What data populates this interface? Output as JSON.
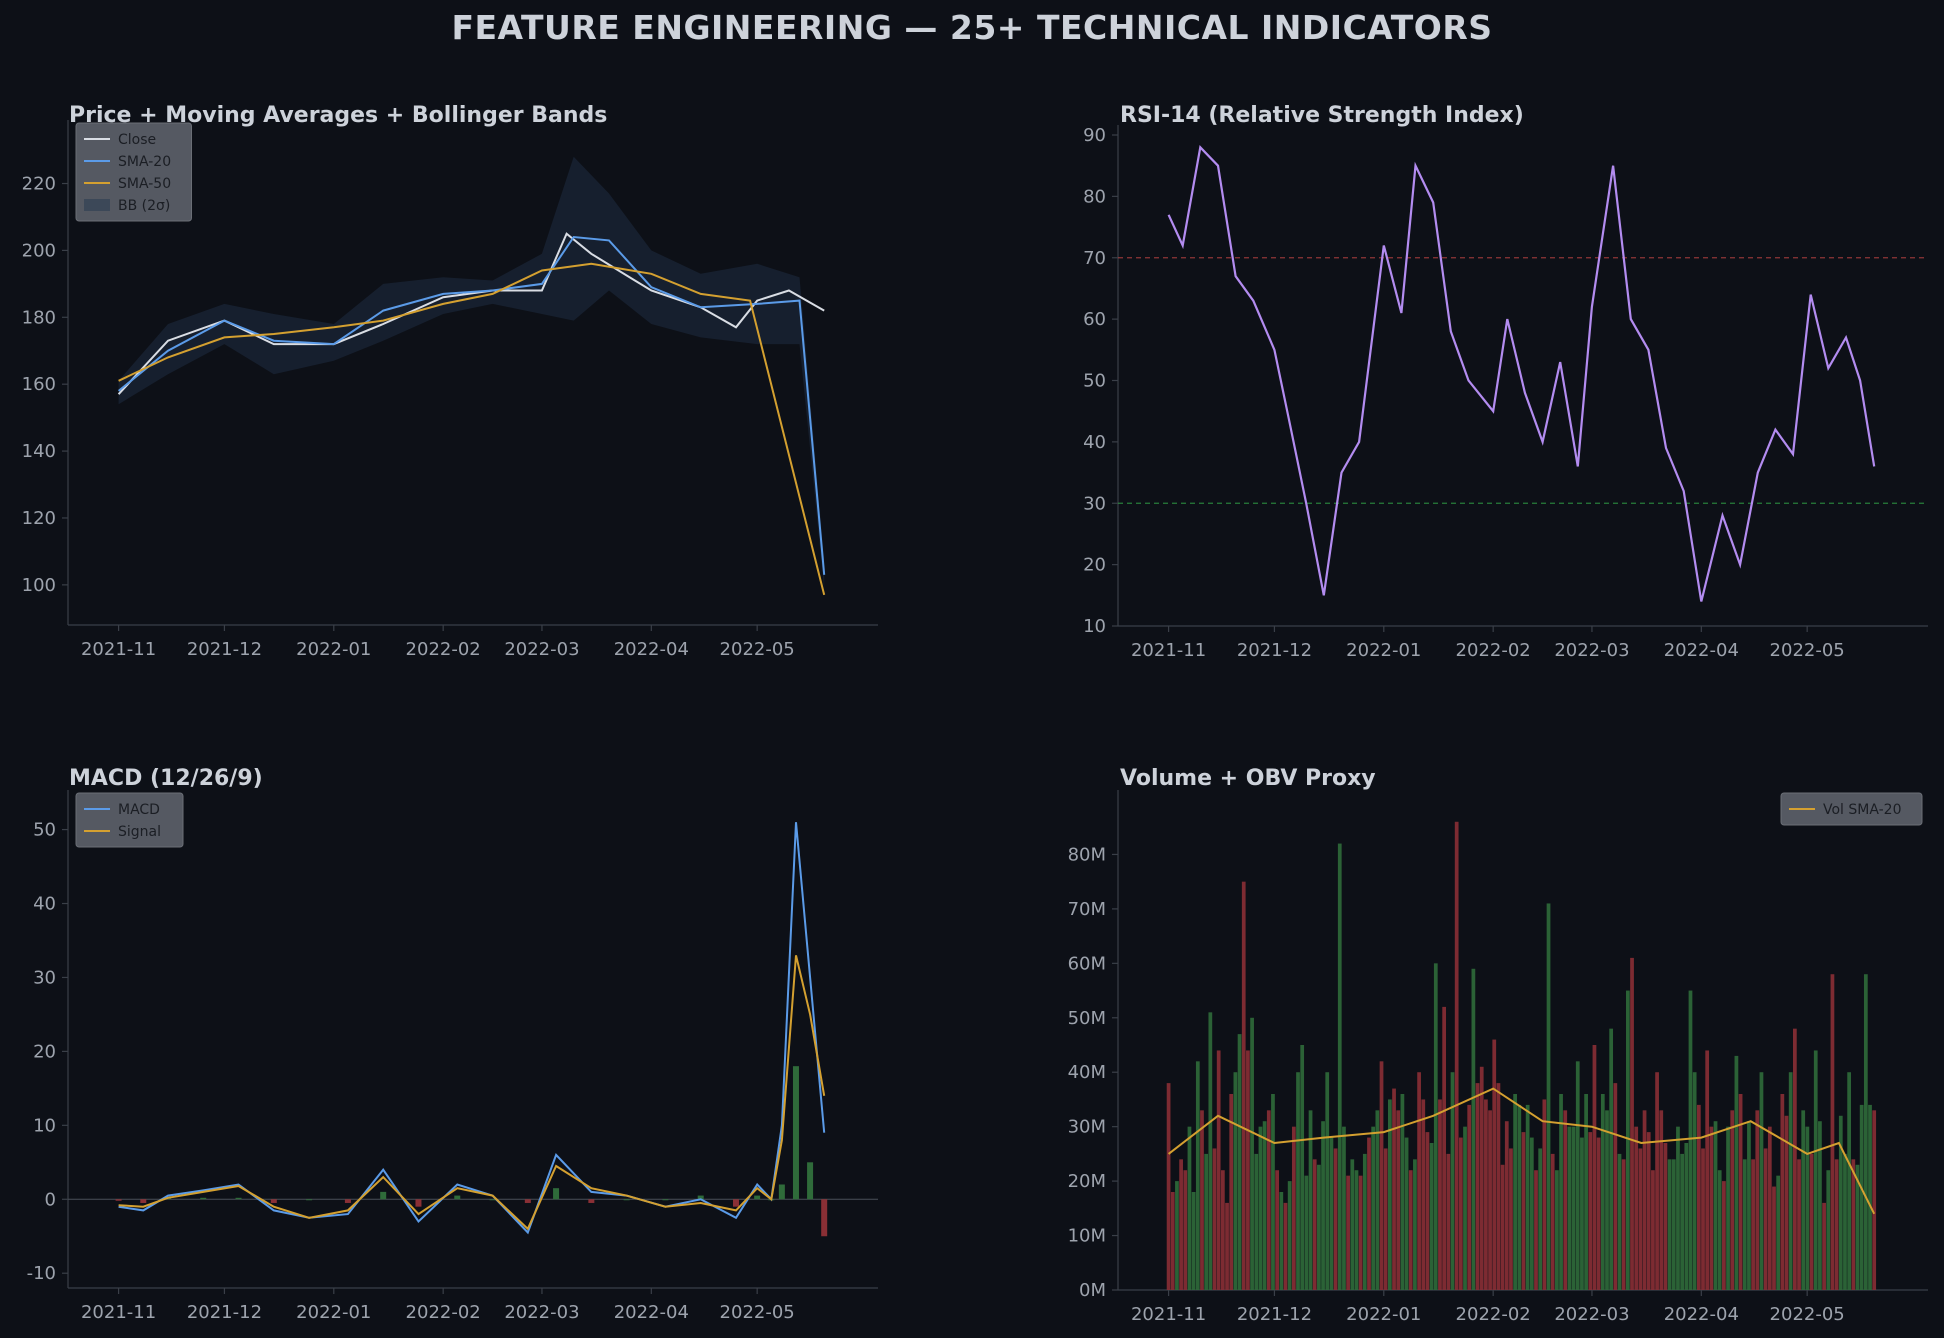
{
  "page": {
    "title": "FEATURE ENGINEERING — 25+ TECHNICAL INDICATORS"
  },
  "colors": {
    "background": "#0d1017",
    "close": "#d9dde4",
    "sma20": "#5b9be8",
    "sma50": "#d4a030",
    "bollinger": "#1c2a3d",
    "rsi": "#b38cf0",
    "overbought": "#b04040",
    "oversold": "#2e9a45",
    "hist_pos": "#2f6b3a",
    "hist_neg": "#8a2f35",
    "vol_up": "#2f6b3a",
    "vol_down": "#8a2f35",
    "vol_sma": "#d4a030"
  },
  "chart_data": [
    {
      "id": "price",
      "type": "line",
      "title": "Price + Moving Averages + Bollinger Bands",
      "x_ticks": [
        "2021-11",
        "2021-12",
        "2022-01",
        "2022-02",
        "2022-03",
        "2022-04",
        "2022-05"
      ],
      "ylim": [
        88,
        236
      ],
      "y_ticks": [
        100,
        120,
        140,
        160,
        180,
        200,
        220
      ],
      "legend": [
        "Close",
        "SMA-20",
        "SMA-50",
        "BB (2σ)"
      ],
      "legend_position": "upper-left",
      "series": [
        {
          "name": "Close",
          "x": [
            "2021-11-01",
            "2021-11-15",
            "2021-12-01",
            "2021-12-15",
            "2022-01-01",
            "2022-01-15",
            "2022-02-01",
            "2022-02-15",
            "2022-03-01",
            "2022-03-08",
            "2022-03-15",
            "2022-04-01",
            "2022-04-15",
            "2022-04-25",
            "2022-05-01",
            "2022-05-10",
            "2022-05-20"
          ],
          "values": [
            157,
            173,
            179,
            172,
            172,
            178,
            186,
            188,
            188,
            205,
            199,
            188,
            183,
            177,
            185,
            188,
            182
          ]
        },
        {
          "name": "SMA-20",
          "x": [
            "2021-11-01",
            "2021-11-15",
            "2021-12-01",
            "2021-12-15",
            "2022-01-01",
            "2022-01-15",
            "2022-02-01",
            "2022-02-15",
            "2022-03-01",
            "2022-03-10",
            "2022-03-20",
            "2022-04-01",
            "2022-04-15",
            "2022-05-01",
            "2022-05-13",
            "2022-05-20"
          ],
          "values": [
            158,
            170,
            179,
            173,
            172,
            182,
            187,
            188,
            190,
            204,
            203,
            189,
            183,
            184,
            185,
            103
          ]
        },
        {
          "name": "SMA-50",
          "x": [
            "2021-11-01",
            "2021-11-15",
            "2021-12-01",
            "2021-12-15",
            "2022-01-01",
            "2022-01-15",
            "2022-02-01",
            "2022-02-15",
            "2022-03-01",
            "2022-03-15",
            "2022-04-01",
            "2022-04-15",
            "2022-04-29",
            "2022-05-20"
          ],
          "values": [
            161,
            168,
            174,
            175,
            177,
            179,
            184,
            187,
            194,
            196,
            193,
            187,
            185,
            97
          ]
        }
      ],
      "bollinger": {
        "x": [
          "2021-11-01",
          "2021-11-15",
          "2021-12-01",
          "2021-12-15",
          "2022-01-01",
          "2022-01-15",
          "2022-02-01",
          "2022-02-15",
          "2022-03-01",
          "2022-03-10",
          "2022-03-20",
          "2022-04-01",
          "2022-04-15",
          "2022-05-01",
          "2022-05-13",
          "2022-05-20"
        ],
        "upper": [
          161,
          178,
          184,
          181,
          178,
          190,
          192,
          191,
          199,
          228,
          217,
          200,
          193,
          196,
          192,
          107
        ],
        "lower": [
          154,
          163,
          172,
          163,
          167,
          173,
          181,
          184,
          181,
          179,
          188,
          178,
          174,
          172,
          172,
          99
        ]
      }
    },
    {
      "id": "rsi",
      "type": "line",
      "title": "RSI-14 (Relative Strength Index)",
      "x_ticks": [
        "2021-11",
        "2021-12",
        "2022-01",
        "2022-02",
        "2022-03",
        "2022-04",
        "2022-05"
      ],
      "ylim": [
        10,
        90
      ],
      "y_ticks": [
        10,
        20,
        30,
        40,
        50,
        60,
        70,
        80,
        90
      ],
      "overbought": 70,
      "oversold": 30,
      "series": [
        {
          "name": "RSI-14",
          "x": [
            "2021-11-01",
            "2021-11-05",
            "2021-11-10",
            "2021-11-15",
            "2021-11-20",
            "2021-11-25",
            "2021-12-01",
            "2021-12-05",
            "2021-12-10",
            "2021-12-15",
            "2021-12-20",
            "2021-12-25",
            "2022-01-01",
            "2022-01-06",
            "2022-01-10",
            "2022-01-15",
            "2022-01-20",
            "2022-01-25",
            "2022-02-01",
            "2022-02-05",
            "2022-02-10",
            "2022-02-15",
            "2022-02-20",
            "2022-02-25",
            "2022-03-01",
            "2022-03-07",
            "2022-03-12",
            "2022-03-17",
            "2022-03-22",
            "2022-03-27",
            "2022-04-01",
            "2022-04-07",
            "2022-04-12",
            "2022-04-17",
            "2022-04-22",
            "2022-04-27",
            "2022-05-02",
            "2022-05-07",
            "2022-05-12",
            "2022-05-16",
            "2022-05-20"
          ],
          "values": [
            77,
            72,
            88,
            85,
            67,
            63,
            55,
            44,
            30,
            15,
            35,
            40,
            72,
            61,
            85,
            79,
            58,
            50,
            45,
            60,
            48,
            40,
            53,
            36,
            62,
            85,
            60,
            55,
            39,
            32,
            14,
            28,
            20,
            35,
            42,
            38,
            64,
            52,
            57,
            50,
            36
          ]
        }
      ]
    },
    {
      "id": "macd",
      "type": "line",
      "title": "MACD (12/26/9)",
      "x_ticks": [
        "2021-11",
        "2021-12",
        "2022-01",
        "2022-02",
        "2022-03",
        "2022-04",
        "2022-05"
      ],
      "ylim": [
        -12,
        54
      ],
      "y_ticks": [
        -10,
        0,
        10,
        20,
        30,
        40,
        50
      ],
      "legend": [
        "MACD",
        "Signal"
      ],
      "legend_position": "upper-left",
      "series": [
        {
          "name": "MACD",
          "x": [
            "2021-11-01",
            "2021-11-08",
            "2021-11-15",
            "2021-11-25",
            "2021-12-05",
            "2021-12-15",
            "2021-12-25",
            "2022-01-05",
            "2022-01-15",
            "2022-01-25",
            "2022-02-05",
            "2022-02-15",
            "2022-02-25",
            "2022-03-05",
            "2022-03-15",
            "2022-03-25",
            "2022-04-05",
            "2022-04-15",
            "2022-04-25",
            "2022-05-01",
            "2022-05-05",
            "2022-05-08",
            "2022-05-12",
            "2022-05-16",
            "2022-05-20"
          ],
          "values": [
            -1,
            -1.5,
            0.5,
            1.2,
            2.0,
            -1.5,
            -2.5,
            -2.0,
            4.0,
            -3.0,
            2.0,
            0.5,
            -4.5,
            6.0,
            1.0,
            0.5,
            -1.0,
            0,
            -2.5,
            2.0,
            0,
            10,
            51,
            30,
            9
          ]
        },
        {
          "name": "Signal",
          "x": [
            "2021-11-01",
            "2021-11-08",
            "2021-11-15",
            "2021-11-25",
            "2021-12-05",
            "2021-12-15",
            "2021-12-25",
            "2022-01-05",
            "2022-01-15",
            "2022-01-25",
            "2022-02-05",
            "2022-02-15",
            "2022-02-25",
            "2022-03-05",
            "2022-03-15",
            "2022-03-25",
            "2022-04-05",
            "2022-04-15",
            "2022-04-25",
            "2022-05-01",
            "2022-05-05",
            "2022-05-08",
            "2022-05-12",
            "2022-05-16",
            "2022-05-20"
          ],
          "values": [
            -0.8,
            -1.0,
            0.2,
            1.0,
            1.8,
            -1.0,
            -2.5,
            -1.5,
            3.0,
            -2.0,
            1.5,
            0.5,
            -4.0,
            4.5,
            1.5,
            0.5,
            -1.0,
            -0.5,
            -1.5,
            1.5,
            0,
            8,
            33,
            25,
            14
          ]
        }
      ]
    },
    {
      "id": "volume",
      "type": "bar",
      "title": "Volume + OBV Proxy",
      "x_ticks": [
        "2021-11",
        "2021-12",
        "2022-01",
        "2022-02",
        "2022-03",
        "2022-04",
        "2022-05"
      ],
      "ylim": [
        0,
        90
      ],
      "y_ticks": [
        "0M",
        "10M",
        "20M",
        "30M",
        "40M",
        "50M",
        "60M",
        "70M",
        "80M"
      ],
      "legend": [
        "Vol SMA-20"
      ],
      "legend_position": "upper-right",
      "series": [
        {
          "name": "Vol SMA-20",
          "x": [
            "2021-11-01",
            "2021-11-15",
            "2021-12-01",
            "2021-12-15",
            "2022-01-01",
            "2022-01-15",
            "2022-02-01",
            "2022-02-15",
            "2022-03-01",
            "2022-03-15",
            "2022-04-01",
            "2022-04-15",
            "2022-05-01",
            "2022-05-10",
            "2022-05-20"
          ],
          "values": [
            25,
            32,
            27,
            28,
            29,
            32,
            37,
            31,
            30,
            27,
            28,
            31,
            25,
            27,
            14
          ]
        }
      ],
      "volume_M": [
        38,
        18,
        20,
        24,
        22,
        30,
        18,
        42,
        33,
        25,
        51,
        26,
        44,
        22,
        16,
        36,
        40,
        47,
        75,
        44,
        50,
        25,
        30,
        31,
        33,
        36,
        22,
        18,
        16,
        20,
        30,
        40,
        45,
        21,
        33,
        24,
        23,
        31,
        40,
        28,
        26,
        82,
        30,
        21,
        24,
        22,
        21,
        25,
        28,
        30,
        33,
        42,
        26,
        35,
        37,
        33,
        36,
        28,
        22,
        24,
        40,
        35,
        29,
        27,
        60,
        35,
        52,
        25,
        40,
        86,
        28,
        30,
        34,
        59,
        38,
        41,
        35,
        33,
        46,
        38,
        23,
        31,
        26,
        36,
        34,
        29,
        34,
        28,
        22,
        26,
        35,
        71,
        25,
        22,
        36,
        33,
        30,
        30,
        42,
        28,
        36,
        29,
        45,
        28,
        36,
        33,
        48,
        38,
        25,
        24,
        55,
        61,
        30,
        26,
        33,
        29,
        22,
        40,
        33,
        27,
        24,
        24,
        30,
        25,
        27,
        55,
        40,
        34,
        26,
        44,
        30,
        31,
        22,
        20,
        30,
        33,
        43,
        36,
        24,
        31,
        24,
        33,
        40,
        26,
        30,
        19,
        21,
        36,
        32,
        40,
        48,
        24,
        33,
        30,
        25,
        44,
        31,
        16,
        22,
        58,
        24,
        32,
        25,
        40,
        24,
        23,
        34,
        58,
        34,
        33
      ]
    }
  ]
}
